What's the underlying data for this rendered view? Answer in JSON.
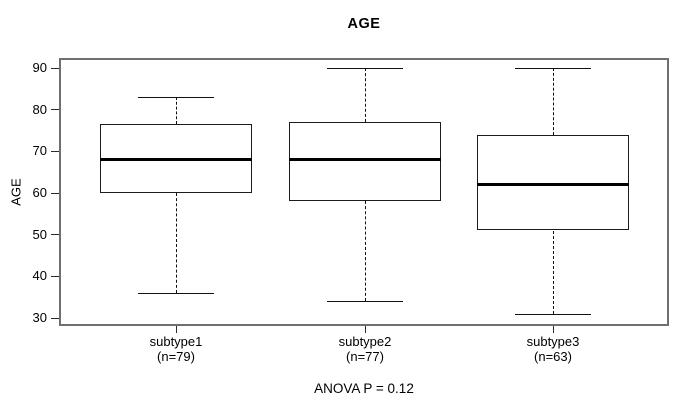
{
  "chart_data": {
    "type": "boxplot",
    "title": "AGE",
    "ylabel": "AGE",
    "xlabel": "",
    "ylim": [
      30,
      90
    ],
    "y_ticks": [
      90,
      80,
      70,
      60,
      50,
      40,
      30
    ],
    "grid": false,
    "legend": "none",
    "annotation": "ANOVA P = 0.12",
    "groups": [
      {
        "label": "subtype1",
        "sublabel": "(n=79)",
        "n": 79,
        "min": 36,
        "q1": 60,
        "median": 68,
        "q3": 76.5,
        "max": 83
      },
      {
        "label": "subtype2",
        "sublabel": "(n=77)",
        "n": 77,
        "min": 34,
        "q1": 58,
        "median": 68,
        "q3": 77,
        "max": 90
      },
      {
        "label": "subtype3",
        "sublabel": "(n=63)",
        "n": 63,
        "min": 31,
        "q1": 51,
        "median": 62,
        "q3": 74,
        "max": 90
      }
    ],
    "line_color": "#000000",
    "frame_color": "#6f6f6f",
    "background_color": "#ffffff"
  }
}
